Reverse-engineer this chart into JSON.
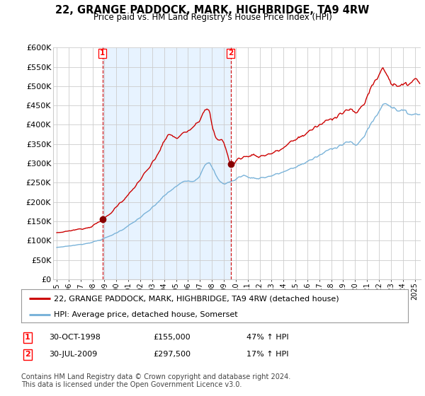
{
  "title": "22, GRANGE PADDOCK, MARK, HIGHBRIDGE, TA9 4RW",
  "subtitle": "Price paid vs. HM Land Registry's House Price Index (HPI)",
  "legend_line1": "22, GRANGE PADDOCK, MARK, HIGHBRIDGE, TA9 4RW (detached house)",
  "legend_line2": "HPI: Average price, detached house, Somerset",
  "footnote": "Contains HM Land Registry data © Crown copyright and database right 2024.\nThis data is licensed under the Open Government Licence v3.0.",
  "table": [
    {
      "num": "1",
      "date": "30-OCT-1998",
      "price": "£155,000",
      "hpi": "47% ↑ HPI"
    },
    {
      "num": "2",
      "date": "30-JUL-2009",
      "price": "£297,500",
      "hpi": "17% ↑ HPI"
    }
  ],
  "sale1_x": 1998.83,
  "sale1_y": 155000,
  "sale2_x": 2009.58,
  "sale2_y": 297500,
  "hpi_color": "#7ab3d9",
  "price_color": "#cc0000",
  "shade_color": "#ddeeff",
  "marker_vline_color": "#cc0000",
  "background_plot": "#ffffff",
  "background_fig": "#ffffff",
  "grid_color": "#cccccc",
  "ylim": [
    0,
    600000
  ],
  "xlim_start": 1994.7,
  "xlim_end": 2025.5
}
